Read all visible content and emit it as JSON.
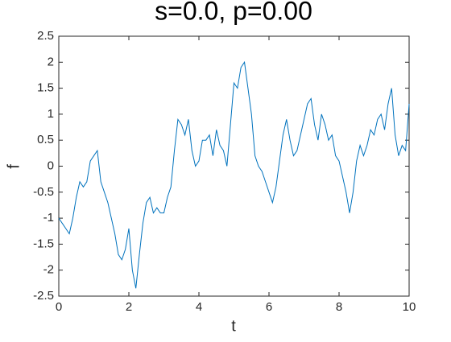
{
  "chart_data": {
    "type": "line",
    "title": "s=0.0, p=0.00",
    "x_label": "t",
    "y_label": "f",
    "x": [
      0,
      0.1,
      0.2,
      0.3,
      0.4,
      0.5,
      0.6,
      0.7,
      0.8,
      0.9,
      1,
      1.1,
      1.2,
      1.3,
      1.4,
      1.5,
      1.6,
      1.7,
      1.8,
      1.9,
      2,
      2.1,
      2.2,
      2.3,
      2.4,
      2.5,
      2.6,
      2.7,
      2.8,
      2.9,
      3,
      3.1,
      3.2,
      3.3,
      3.4,
      3.5,
      3.6,
      3.7,
      3.8,
      3.9,
      4,
      4.1,
      4.2,
      4.3,
      4.4,
      4.5,
      4.6,
      4.7,
      4.8,
      4.9,
      5,
      5.1,
      5.2,
      5.3,
      5.4,
      5.5,
      5.6,
      5.7,
      5.8,
      5.9,
      6,
      6.1,
      6.2,
      6.3,
      6.4,
      6.5,
      6.6,
      6.7,
      6.8,
      6.9,
      7,
      7.1,
      7.2,
      7.3,
      7.4,
      7.5,
      7.6,
      7.7,
      7.8,
      7.9,
      8,
      8.1,
      8.2,
      8.3,
      8.4,
      8.5,
      8.6,
      8.7,
      8.8,
      8.9,
      9,
      9.1,
      9.2,
      9.3,
      9.4,
      9.5,
      9.6,
      9.7,
      9.8,
      9.9,
      10
    ],
    "series": [
      {
        "color": "#0072bd",
        "values": [
          -1.0,
          -1.1,
          -1.2,
          -1.3,
          -1.0,
          -0.6,
          -0.3,
          -0.4,
          -0.3,
          0.1,
          0.2,
          0.3,
          -0.3,
          -0.5,
          -0.7,
          -1.0,
          -1.3,
          -1.7,
          -1.8,
          -1.6,
          -1.2,
          -2.0,
          -2.35,
          -1.7,
          -1.1,
          -0.7,
          -0.6,
          -0.9,
          -0.8,
          -0.9,
          -0.9,
          -0.6,
          -0.4,
          0.3,
          0.9,
          0.8,
          0.6,
          0.9,
          0.3,
          0.0,
          0.1,
          0.5,
          0.5,
          0.6,
          0.2,
          0.7,
          0.4,
          0.3,
          0.0,
          0.8,
          1.6,
          1.5,
          1.9,
          2.0,
          1.5,
          1.0,
          0.2,
          0.0,
          -0.1,
          -0.3,
          -0.5,
          -0.7,
          -0.4,
          0.1,
          0.6,
          0.9,
          0.5,
          0.2,
          0.3,
          0.6,
          0.9,
          1.2,
          1.3,
          0.8,
          0.5,
          1.0,
          0.8,
          0.5,
          0.6,
          0.2,
          0.1,
          -0.2,
          -0.5,
          -0.9,
          -0.5,
          0.1,
          0.4,
          0.2,
          0.4,
          0.7,
          0.6,
          0.9,
          1.0,
          0.7,
          1.2,
          1.5,
          0.6,
          0.2,
          0.4,
          0.3,
          1.2
        ]
      }
    ],
    "xlim": [
      0,
      10
    ],
    "xticks": [
      0,
      2,
      4,
      6,
      8,
      10
    ],
    "ylim": [
      -2.5,
      2.5
    ],
    "yticks": [
      -2.5,
      -2,
      -1.5,
      -1,
      -0.5,
      0,
      0.5,
      1,
      1.5,
      2,
      2.5
    ]
  }
}
